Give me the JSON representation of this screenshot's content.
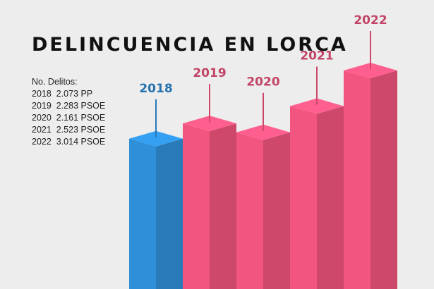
{
  "chart_data": {
    "type": "bar3d",
    "title": "DELINCUENCIA EN LORCA",
    "annotations": [
      "No. Delitos:",
      "2018  2.073 PP",
      "2019  2.283 PSOE",
      "2020  2.161 PSOE",
      "2021  2.523 PSOE",
      "2022  3.014 PSOE"
    ],
    "categories": [
      "2018",
      "2019",
      "2020",
      "2021",
      "2022"
    ],
    "values": [
      2073,
      2283,
      2161,
      2523,
      3014
    ],
    "colors": [
      "#2f8fd8",
      "#f2557f",
      "#f2557f",
      "#f2557f",
      "#f2557f"
    ]
  }
}
